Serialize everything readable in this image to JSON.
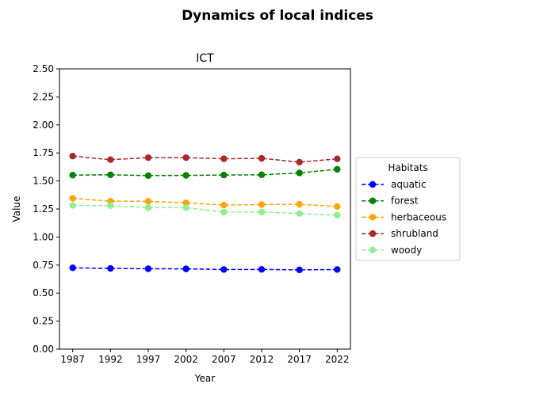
{
  "figure": {
    "suptitle": "Dynamics of local indices"
  },
  "chart_data": {
    "type": "line",
    "title": "ICT",
    "xlabel": "Year",
    "ylabel": "Value",
    "x": [
      1987,
      1992,
      1997,
      2002,
      2007,
      2012,
      2017,
      2022
    ],
    "xticks": [
      "1987",
      "1992",
      "1997",
      "2002",
      "2007",
      "2012",
      "2017",
      "2022"
    ],
    "ylim": [
      0,
      2.5
    ],
    "yticks": [
      "0.00",
      "0.25",
      "0.50",
      "0.75",
      "1.00",
      "1.25",
      "1.50",
      "1.75",
      "2.00",
      "2.25",
      "2.50"
    ],
    "grid": false,
    "line_style": "dashed",
    "marker": "circle",
    "legend": {
      "title": "Habitats",
      "placement": "right, outside plot"
    },
    "series": [
      {
        "name": "aquatic",
        "color": "#0000ff",
        "values": [
          0.725,
          0.72,
          0.717,
          0.716,
          0.71,
          0.711,
          0.707,
          0.71
        ]
      },
      {
        "name": "forest",
        "color": "#008000",
        "values": [
          1.552,
          1.555,
          1.548,
          1.55,
          1.553,
          1.555,
          1.572,
          1.604
        ]
      },
      {
        "name": "herbaceous",
        "color": "#ffa500",
        "values": [
          1.345,
          1.32,
          1.318,
          1.305,
          1.285,
          1.29,
          1.292,
          1.272
        ]
      },
      {
        "name": "shrubland",
        "color": "#a52a2a",
        "values": [
          1.722,
          1.69,
          1.708,
          1.708,
          1.698,
          1.702,
          1.668,
          1.697
        ]
      },
      {
        "name": "woody",
        "color": "#90ee90",
        "values": [
          1.282,
          1.28,
          1.262,
          1.262,
          1.222,
          1.223,
          1.21,
          1.195
        ]
      }
    ]
  }
}
